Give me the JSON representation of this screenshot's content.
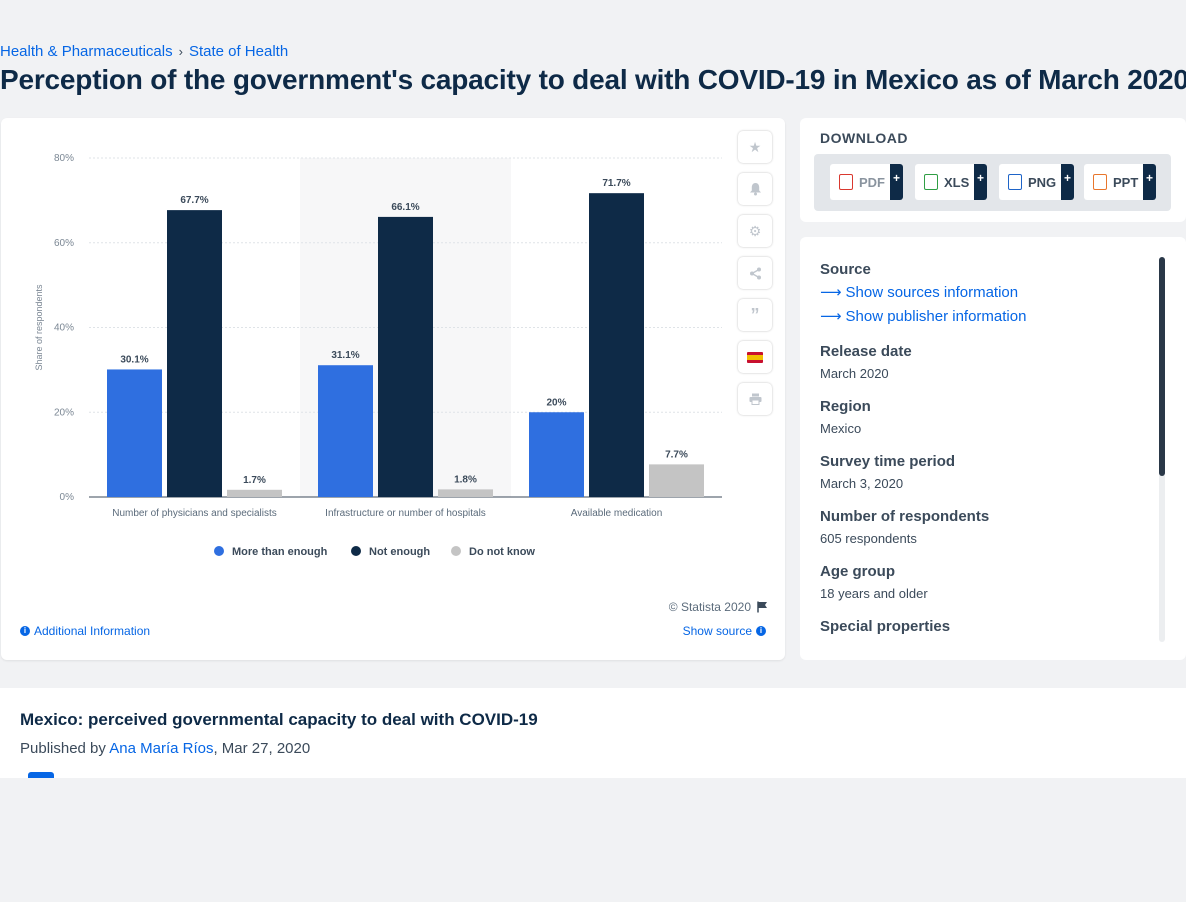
{
  "breadcrumb": {
    "items": [
      "Health & Pharmaceuticals",
      "State of Health"
    ],
    "separator": "›"
  },
  "page_title": "Perception of the government's capacity to deal with COVID-19 in Mexico as of March 2020",
  "chart_card": {
    "copyright": "© Statista 2020",
    "additional_info": "Additional Information",
    "show_source": "Show source"
  },
  "toolbar_icons": [
    "star-icon",
    "bell-icon",
    "gear-icon",
    "share-icon",
    "quote-icon",
    "spain-flag-icon",
    "print-icon"
  ],
  "download": {
    "title": "DOWNLOAD",
    "buttons": [
      {
        "label": "PDF",
        "plus": "+",
        "color": "#d9382f"
      },
      {
        "label": "XLS",
        "plus": "+",
        "color": "#2f9e44"
      },
      {
        "label": "PNG",
        "plus": "+",
        "color": "#1e64c8"
      },
      {
        "label": "PPT",
        "plus": "+",
        "color": "#e8762c"
      }
    ]
  },
  "meta": {
    "source_label": "Source",
    "source_link": "Show sources information",
    "publisher_link": "Show publisher information",
    "release_label": "Release date",
    "release_value": "March 2020",
    "region_label": "Region",
    "region_value": "Mexico",
    "survey_label": "Survey time period",
    "survey_value": "March 3, 2020",
    "respondents_label": "Number of respondents",
    "respondents_value": "605 respondents",
    "age_label": "Age group",
    "age_value": "18 years and older",
    "special_label": "Special properties"
  },
  "publication": {
    "title": "Mexico: perceived governmental capacity to deal with COVID-19",
    "published_by": "Published by",
    "author": "Ana María Ríos",
    "date": ", Mar 27, 2020"
  },
  "colors": {
    "more_than_enough": "#2f6fe0",
    "not_enough": "#0e2a47",
    "do_not_know": "#c4c4c4",
    "accent": "#0666e5"
  },
  "chart_data": {
    "type": "bar",
    "categories": [
      "Number of physicians and specialists",
      "Infrastructure or number of hospitals",
      "Available medication"
    ],
    "series": [
      {
        "name": "More than enough",
        "values": [
          30.1,
          31.1,
          20
        ],
        "labels": [
          "30.1%",
          "31.1%",
          "20%"
        ]
      },
      {
        "name": "Not enough",
        "values": [
          67.7,
          66.1,
          71.7
        ],
        "labels": [
          "67.7%",
          "66.1%",
          "71.7%"
        ]
      },
      {
        "name": "Do not know",
        "values": [
          1.7,
          1.8,
          7.7
        ],
        "labels": [
          "1.7%",
          "1.8%",
          "7.7%"
        ]
      }
    ],
    "ylabel": "Share of respondents",
    "ylim": [
      0,
      80
    ],
    "yticks": [
      0,
      20,
      40,
      60,
      80
    ],
    "ytick_labels": [
      "0%",
      "20%",
      "40%",
      "60%",
      "80%"
    ],
    "grid": true,
    "legend_position": "bottom",
    "highlighted_category": "Infrastructure or number of hospitals"
  }
}
